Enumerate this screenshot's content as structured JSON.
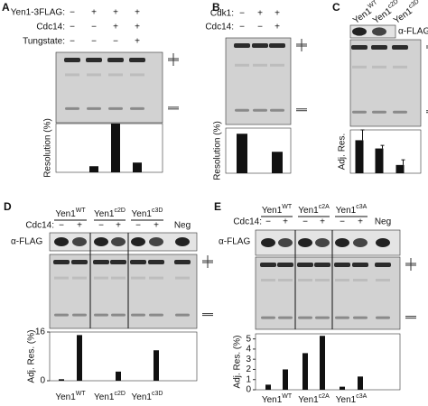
{
  "panels": [
    {
      "letter": "A",
      "rows": [
        {
          "label": "Yen1-3FLAG:",
          "marks": [
            "−",
            "+",
            "+",
            "+"
          ]
        },
        {
          "label": "Cdc14:",
          "marks": [
            "−",
            "−",
            "+",
            "+"
          ]
        },
        {
          "label": "Tungstate:",
          "marks": [
            "−",
            "−",
            "−",
            "+"
          ]
        }
      ],
      "chart": {
        "type": "bar",
        "ylabel": "Resolution (%)",
        "values": [
          0,
          5,
          40,
          8
        ],
        "ylim": [
          0,
          40
        ]
      }
    },
    {
      "letter": "B",
      "rows": [
        {
          "label": "Cdk1:",
          "marks": [
            "−",
            "+",
            "+"
          ]
        },
        {
          "label": "Cdc14:",
          "marks": [
            "−",
            "−",
            "+"
          ]
        }
      ],
      "chart": {
        "type": "bar",
        "ylabel": "Resolution (%)",
        "values": [
          35,
          0,
          19
        ],
        "ylim": [
          0,
          40
        ]
      }
    },
    {
      "letter": "C",
      "columns": [
        {
          "base": "Yen1",
          "sup": "WT"
        },
        {
          "base": "Yen1",
          "sup": "c2D"
        },
        {
          "base": "Yen1",
          "sup": "c3D"
        }
      ],
      "blot": "α-FLAG",
      "chart": {
        "type": "bar",
        "ylabel": "Adj. Res.",
        "values": [
          16,
          12,
          4
        ],
        "errors": [
          5,
          1.5,
          2.5
        ],
        "ylim": [
          0,
          21
        ]
      }
    },
    {
      "letter": "D",
      "groups": [
        {
          "base": "Yen1",
          "sup": "WT"
        },
        {
          "base": "Yen1",
          "sup": "c2D"
        },
        {
          "base": "Yen1",
          "sup": "c3D"
        }
      ],
      "rows": [
        {
          "label": "Cdc14:",
          "marks": [
            "−",
            "+",
            "−",
            "+",
            "−",
            "+",
            "Neg"
          ]
        }
      ],
      "blot": "α-FLAG",
      "chart": {
        "type": "bar",
        "ylabel": "Adj. Res. (%)",
        "values": [
          0.5,
          15,
          0,
          3,
          0,
          10
        ],
        "ylim": [
          0,
          16
        ],
        "yticks": [
          0,
          16
        ]
      }
    },
    {
      "letter": "E",
      "groups": [
        {
          "base": "Yen1",
          "sup": "WT"
        },
        {
          "base": "Yen1",
          "sup": "c2A"
        },
        {
          "base": "Yen1",
          "sup": "c3A"
        }
      ],
      "rows": [
        {
          "label": "Cdc14:",
          "marks": [
            "−",
            "+",
            "−",
            "+",
            "−",
            "+",
            "Neg"
          ]
        }
      ],
      "blot": "α-FLAG",
      "chart": {
        "type": "bar",
        "ylabel": "Adj. Res. (%)",
        "values": [
          0.5,
          2,
          3.6,
          5.3,
          0.3,
          1.3
        ],
        "ylim": [
          0,
          5.5
        ],
        "yticks": [
          0,
          1,
          2,
          3,
          4,
          5
        ]
      }
    }
  ]
}
